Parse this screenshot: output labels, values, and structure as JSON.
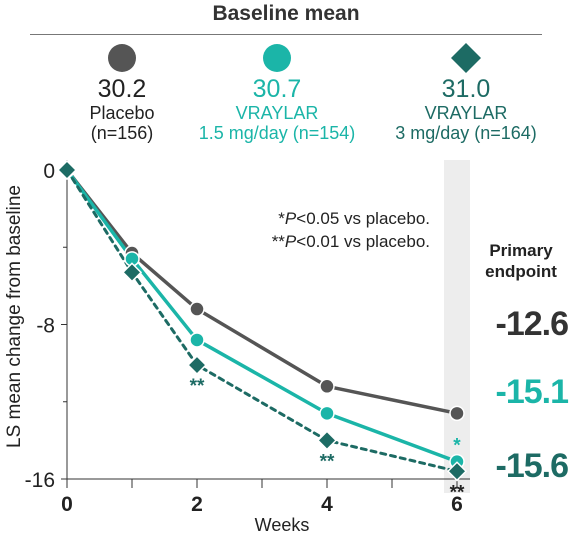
{
  "heading": "Baseline mean",
  "legend": [
    {
      "name": "Placebo",
      "sub": "(n=156)",
      "baseline": "30.2",
      "color": "#555555",
      "marker": "circle",
      "left": 22
    },
    {
      "name": "VRAYLAR",
      "sub": "1.5 mg/day (n=154)",
      "baseline": "30.7",
      "color": "#1bb5a8",
      "marker": "circle",
      "left": 177
    },
    {
      "name": "VRAYLAR",
      "sub": "3 mg/day (n=164)",
      "baseline": "31.0",
      "color": "#1d6b64",
      "marker": "diamond",
      "left": 366
    }
  ],
  "footnotes": {
    "line1": {
      "sym": "*",
      "p": "P",
      "rest": "<0.05 vs placebo."
    },
    "line2": {
      "sym": "**",
      "p": "P",
      "rest": "<0.01 vs placebo."
    }
  },
  "primary_endpoint": {
    "line1": "Primary",
    "line2": "endpoint"
  },
  "chart_data": {
    "type": "line",
    "xlabel": "Weeks",
    "ylabel": "LS mean change from baseline",
    "x": [
      0,
      1,
      2,
      4,
      6
    ],
    "xticks": [
      "0",
      "2",
      "4",
      "6"
    ],
    "xtick_values": [
      0,
      2,
      4,
      6
    ],
    "yticks": [
      "0",
      "-8",
      "-16"
    ],
    "ytick_values": [
      0,
      -8,
      -16
    ],
    "xlim": [
      0,
      6
    ],
    "ylim": [
      -16,
      0
    ],
    "highlight_x": 6,
    "series": [
      {
        "name": "Placebo",
        "values": [
          0,
          -4.3,
          -7.2,
          -11.2,
          -12.6
        ],
        "color": "#555555",
        "marker": "circle",
        "dash": false,
        "end_label": "-12.6"
      },
      {
        "name": "VRAYLAR 1.5 mg/day",
        "values": [
          0,
          -4.6,
          -8.8,
          -12.6,
          -15.1
        ],
        "color": "#1bb5a8",
        "marker": "circle",
        "dash": false,
        "end_label": "-15.1"
      },
      {
        "name": "VRAYLAR 3 mg/day",
        "values": [
          0,
          -5.3,
          -10.1,
          -14.0,
          -15.6
        ],
        "color": "#1d6b64",
        "marker": "diamond",
        "dash": true,
        "end_label": "-15.6"
      }
    ],
    "annotations": [
      {
        "text": "**",
        "x": 2,
        "series": 2,
        "color": "#1d6b64"
      },
      {
        "text": "**",
        "x": 4,
        "series": 2,
        "color": "#1d6b64"
      },
      {
        "text": "*",
        "x": 6,
        "series": 1,
        "color": "#1bb5a8"
      },
      {
        "text": "**",
        "x": 6,
        "series": 2,
        "color": "#222222"
      }
    ]
  }
}
